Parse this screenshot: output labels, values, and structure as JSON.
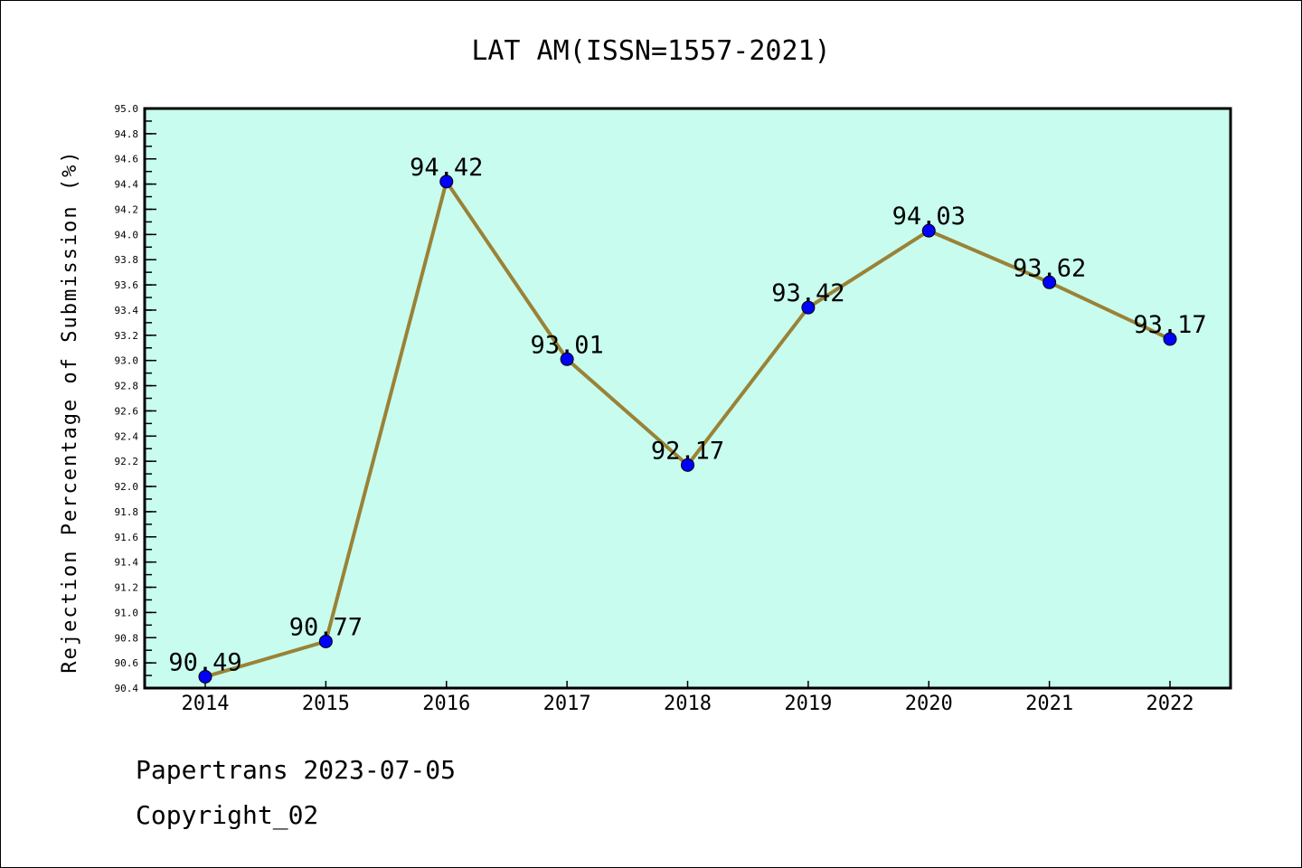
{
  "chart_data": {
    "type": "line",
    "title": "LAT AM(ISSN=1557-2021)",
    "xlabel": "",
    "ylabel": "Rejection Percentage of Submission (%)",
    "categories": [
      "2014",
      "2015",
      "2016",
      "2017",
      "2018",
      "2019",
      "2020",
      "2021",
      "2022"
    ],
    "values": [
      90.49,
      90.77,
      94.42,
      93.01,
      92.17,
      93.42,
      94.03,
      93.62,
      93.17
    ],
    "data_labels": [
      "90.49",
      "90.77",
      "94.42",
      "93.01",
      "92.17",
      "93.42",
      "94.03",
      "93.62",
      "93.17"
    ],
    "ylim": [
      90.4,
      95.0
    ],
    "yticks": [
      "90.4",
      "90.6",
      "90.8",
      "91.0",
      "91.2",
      "91.4",
      "91.6",
      "91.8",
      "92.0",
      "92.2",
      "92.4",
      "92.6",
      "92.8",
      "93.0",
      "93.2",
      "93.4",
      "93.6",
      "93.8",
      "94.0",
      "94.2",
      "94.4",
      "94.6",
      "94.8",
      "95.0"
    ],
    "grid": false,
    "colors": {
      "background": "#c8fcee",
      "line": "#9a8236",
      "marker": "#0000ff"
    }
  },
  "footer": {
    "line1": "Papertrans 2023-07-05",
    "line2": "Copyright_02"
  }
}
